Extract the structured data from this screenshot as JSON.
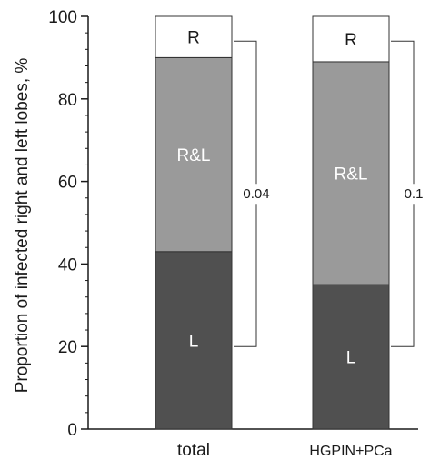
{
  "chart_data": {
    "type": "bar",
    "stacked": true,
    "ylabel": "Proportion of infected right and left lobes, %",
    "xlabel": "",
    "ylim": [
      0,
      100
    ],
    "yticks": [
      0,
      20,
      40,
      60,
      80,
      100
    ],
    "categories": [
      "total",
      "HGPIN+PCa"
    ],
    "series": [
      {
        "name": "L",
        "values": [
          43,
          35
        ],
        "color": "#505050",
        "label_color": "#ffffff"
      },
      {
        "name": "R&L",
        "values": [
          47,
          54
        ],
        "color": "#9a9a9a",
        "label_color": "#ffffff"
      },
      {
        "name": "R",
        "values": [
          10,
          11
        ],
        "color": "#ffffff",
        "label_color": "#1a1a1a"
      }
    ],
    "annotations": [
      {
        "category": "total",
        "text": "0.04",
        "from": 20,
        "to": 94
      },
      {
        "category": "HGPIN+PCa",
        "text": "0.1",
        "from": 20,
        "to": 94
      }
    ],
    "grid": false,
    "legend": "none"
  }
}
